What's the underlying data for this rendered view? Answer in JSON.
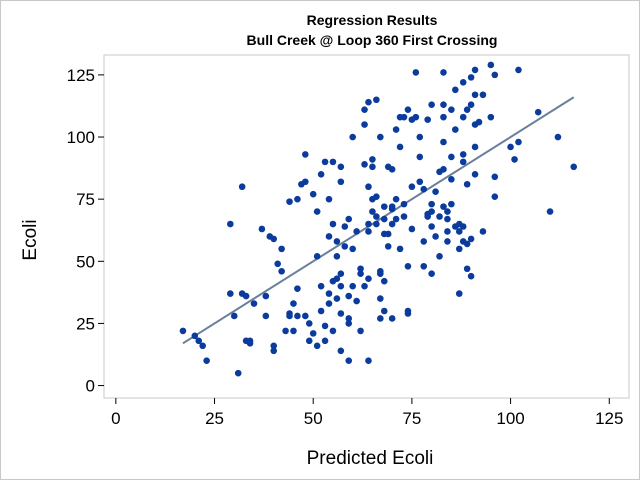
{
  "chart_data": {
    "type": "scatter",
    "title": "Regression Results",
    "subtitle": "Bull Creek @ Loop 360 First Crossing",
    "xlabel": "Predicted Ecoli",
    "ylabel": "Ecoli",
    "xlim": [
      -3,
      130
    ],
    "ylim": [
      -5,
      133
    ],
    "xticks": [
      "0",
      "25",
      "50",
      "75",
      "100",
      "125"
    ],
    "yticks": [
      "0",
      "25",
      "50",
      "75",
      "100",
      "125"
    ],
    "grid": false,
    "marker_color": "#0b3b9c",
    "fit_color": "#6a7f9c",
    "fit_line": {
      "x": [
        17,
        116
      ],
      "y": [
        17,
        116
      ]
    },
    "points": [
      [
        17,
        22
      ],
      [
        20,
        20
      ],
      [
        21,
        18
      ],
      [
        22,
        16
      ],
      [
        23,
        10
      ],
      [
        29,
        65
      ],
      [
        29,
        37
      ],
      [
        31,
        5
      ],
      [
        32,
        80
      ],
      [
        30,
        28
      ],
      [
        32,
        37
      ],
      [
        33,
        36
      ],
      [
        33,
        18
      ],
      [
        34,
        18
      ],
      [
        34,
        17
      ],
      [
        35,
        33
      ],
      [
        37,
        63
      ],
      [
        38,
        36
      ],
      [
        38,
        28
      ],
      [
        39,
        60
      ],
      [
        40,
        59
      ],
      [
        40,
        16
      ],
      [
        40,
        14
      ],
      [
        41,
        49
      ],
      [
        42,
        46
      ],
      [
        42,
        55
      ],
      [
        43,
        22
      ],
      [
        44,
        29
      ],
      [
        44,
        28
      ],
      [
        45,
        33
      ],
      [
        45,
        22
      ],
      [
        46,
        28
      ],
      [
        46,
        39
      ],
      [
        44,
        74
      ],
      [
        46,
        75
      ],
      [
        47,
        81
      ],
      [
        48,
        82
      ],
      [
        48,
        93
      ],
      [
        48,
        28
      ],
      [
        49,
        18
      ],
      [
        49,
        25
      ],
      [
        50,
        21
      ],
      [
        50,
        77
      ],
      [
        51,
        52
      ],
      [
        51,
        70
      ],
      [
        51,
        16
      ],
      [
        52,
        30
      ],
      [
        52,
        40
      ],
      [
        52,
        85
      ],
      [
        53,
        90
      ],
      [
        53,
        24
      ],
      [
        53,
        18
      ],
      [
        54,
        33
      ],
      [
        54,
        37
      ],
      [
        54,
        60
      ],
      [
        54,
        75
      ],
      [
        55,
        22
      ],
      [
        55,
        42
      ],
      [
        55,
        90
      ],
      [
        55,
        65
      ],
      [
        56,
        35
      ],
      [
        56,
        43
      ],
      [
        56,
        52
      ],
      [
        56,
        58
      ],
      [
        57,
        45
      ],
      [
        57,
        40
      ],
      [
        57,
        29
      ],
      [
        57,
        14
      ],
      [
        57,
        88
      ],
      [
        57,
        82
      ],
      [
        58,
        64
      ],
      [
        58,
        56
      ],
      [
        59,
        27
      ],
      [
        59,
        36
      ],
      [
        59,
        10
      ],
      [
        59,
        25
      ],
      [
        59,
        67
      ],
      [
        60,
        55
      ],
      [
        60,
        40
      ],
      [
        60,
        100
      ],
      [
        61,
        34
      ],
      [
        61,
        62
      ],
      [
        62,
        47
      ],
      [
        62,
        45
      ],
      [
        62,
        22
      ],
      [
        63,
        111
      ],
      [
        63,
        105
      ],
      [
        63,
        40
      ],
      [
        63,
        89
      ],
      [
        64,
        114
      ],
      [
        64,
        10
      ],
      [
        64,
        80
      ],
      [
        64,
        62
      ],
      [
        64,
        65
      ],
      [
        64,
        43
      ],
      [
        65,
        91
      ],
      [
        65,
        75
      ],
      [
        65,
        70
      ],
      [
        65,
        88
      ],
      [
        66,
        115
      ],
      [
        66,
        76
      ],
      [
        66,
        68
      ],
      [
        66,
        65
      ],
      [
        67,
        100
      ],
      [
        67,
        45
      ],
      [
        67,
        27
      ],
      [
        67,
        46
      ],
      [
        67,
        35
      ],
      [
        68,
        30
      ],
      [
        68,
        42
      ],
      [
        68,
        72
      ],
      [
        68,
        67
      ],
      [
        68,
        61
      ],
      [
        69,
        61
      ],
      [
        69,
        56
      ],
      [
        69,
        88
      ],
      [
        70,
        27
      ],
      [
        70,
        87
      ],
      [
        70,
        65
      ],
      [
        70,
        71
      ],
      [
        70,
        72
      ],
      [
        71,
        75
      ],
      [
        71,
        67
      ],
      [
        71,
        103
      ],
      [
        72,
        55
      ],
      [
        72,
        108
      ],
      [
        72,
        96
      ],
      [
        73,
        108
      ],
      [
        73,
        73
      ],
      [
        73,
        68
      ],
      [
        74,
        30
      ],
      [
        74,
        29
      ],
      [
        74,
        48
      ],
      [
        74,
        111
      ],
      [
        75,
        107
      ],
      [
        75,
        63
      ],
      [
        75,
        80
      ],
      [
        76,
        126
      ],
      [
        76,
        108
      ],
      [
        77,
        100
      ],
      [
        77,
        92
      ],
      [
        77,
        82
      ],
      [
        78,
        79
      ],
      [
        78,
        58
      ],
      [
        78,
        48
      ],
      [
        79,
        107
      ],
      [
        79,
        69
      ],
      [
        79,
        68
      ],
      [
        80,
        113
      ],
      [
        80,
        73
      ],
      [
        80,
        70
      ],
      [
        80,
        64
      ],
      [
        80,
        45
      ],
      [
        81,
        60
      ],
      [
        81,
        78
      ],
      [
        82,
        52
      ],
      [
        82,
        86
      ],
      [
        82,
        68
      ],
      [
        83,
        126
      ],
      [
        83,
        113
      ],
      [
        83,
        108
      ],
      [
        83,
        98
      ],
      [
        83,
        87
      ],
      [
        83,
        72
      ],
      [
        84,
        70
      ],
      [
        84,
        62
      ],
      [
        84,
        67
      ],
      [
        84,
        58
      ],
      [
        85,
        92
      ],
      [
        85,
        83
      ],
      [
        85,
        111
      ],
      [
        85,
        73
      ],
      [
        86,
        103
      ],
      [
        86,
        119
      ],
      [
        86,
        64
      ],
      [
        87,
        65
      ],
      [
        87,
        62
      ],
      [
        87,
        55
      ],
      [
        87,
        37
      ],
      [
        88,
        122
      ],
      [
        88,
        108
      ],
      [
        88,
        93
      ],
      [
        88,
        90
      ],
      [
        88,
        64
      ],
      [
        88,
        58
      ],
      [
        89,
        111
      ],
      [
        89,
        81
      ],
      [
        89,
        57
      ],
      [
        89,
        47
      ],
      [
        90,
        124
      ],
      [
        90,
        113
      ],
      [
        90,
        59
      ],
      [
        90,
        44
      ],
      [
        91,
        127
      ],
      [
        91,
        117
      ],
      [
        91,
        105
      ],
      [
        91,
        96
      ],
      [
        91,
        85
      ],
      [
        92,
        106
      ],
      [
        93,
        117
      ],
      [
        93,
        62
      ],
      [
        95,
        129
      ],
      [
        95,
        108
      ],
      [
        96,
        125
      ],
      [
        96,
        76
      ],
      [
        96,
        84
      ],
      [
        100,
        96
      ],
      [
        101,
        91
      ],
      [
        102,
        127
      ],
      [
        102,
        98
      ],
      [
        107,
        110
      ],
      [
        110,
        70
      ],
      [
        112,
        100
      ],
      [
        116,
        88
      ]
    ]
  }
}
